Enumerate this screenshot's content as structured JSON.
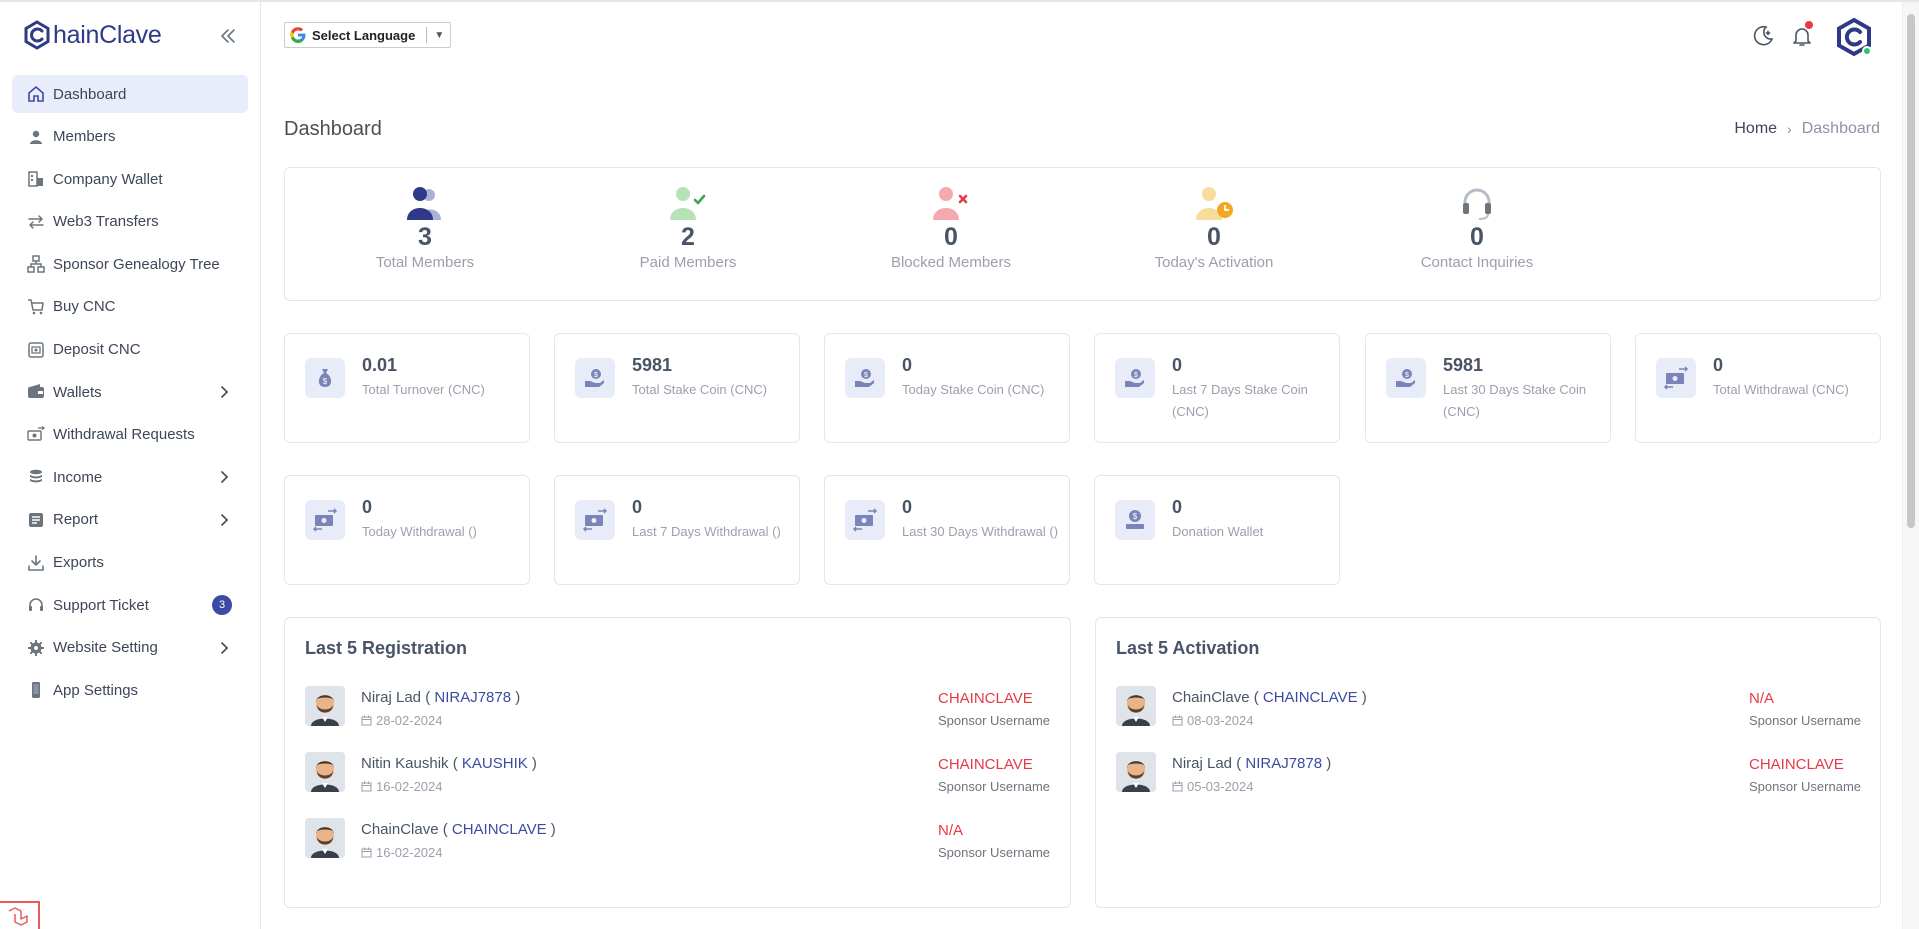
{
  "brand": {
    "name": "hainClave"
  },
  "sidebar": {
    "items": [
      {
        "label": "Dashboard",
        "icon": "home-icon",
        "active": true
      },
      {
        "label": "Members",
        "icon": "user-icon"
      },
      {
        "label": "Company Wallet",
        "icon": "building-icon"
      },
      {
        "label": "Web3 Transfers",
        "icon": "transfer-icon"
      },
      {
        "label": "Sponsor Genealogy Tree",
        "icon": "tree-icon"
      },
      {
        "label": "Buy CNC",
        "icon": "cart-icon"
      },
      {
        "label": "Deposit CNC",
        "icon": "deposit-icon"
      },
      {
        "label": "Wallets",
        "icon": "wallet-icon",
        "arrow": true
      },
      {
        "label": "Withdrawal Requests",
        "icon": "withdraw-icon"
      },
      {
        "label": "Income",
        "icon": "coins-icon",
        "arrow": true
      },
      {
        "label": "Report",
        "icon": "report-icon",
        "arrow": true
      },
      {
        "label": "Exports",
        "icon": "download-icon"
      },
      {
        "label": "Support Ticket",
        "icon": "headset-icon",
        "badge": "3"
      },
      {
        "label": "Website Setting",
        "icon": "gear-icon",
        "arrow": true
      },
      {
        "label": "App Settings",
        "icon": "phone-icon"
      }
    ]
  },
  "topbar": {
    "language_label": "Select Language",
    "language_caret": "▼"
  },
  "page": {
    "title": "Dashboard",
    "breadcrumb_home": "Home",
    "breadcrumb_sep": "›",
    "breadcrumb_current": "Dashboard"
  },
  "member_stats": [
    {
      "value": "3",
      "label": "Total Members"
    },
    {
      "value": "2",
      "label": "Paid Members"
    },
    {
      "value": "0",
      "label": "Blocked Members"
    },
    {
      "value": "0",
      "label": "Today's Activation"
    },
    {
      "value": "0",
      "label": "Contact Inquiries"
    }
  ],
  "value_cards": [
    {
      "value": "0.01",
      "label": "Total Turnover (CNC)"
    },
    {
      "value": "5981",
      "label": "Total Stake Coin (CNC)"
    },
    {
      "value": "0",
      "label": "Today Stake Coin (CNC)"
    },
    {
      "value": "0",
      "label": "Last 7 Days Stake Coin (CNC)"
    },
    {
      "value": "5981",
      "label": "Last 30 Days Stake Coin (CNC)"
    },
    {
      "value": "0",
      "label": "Total Withdrawal (CNC)"
    },
    {
      "value": "0",
      "label": "Today Withdrawal ()"
    },
    {
      "value": "0",
      "label": "Last 7 Days Withdrawal ()"
    },
    {
      "value": "0",
      "label": "Last 30 Days Withdrawal ()"
    },
    {
      "value": "0",
      "label": "Donation Wallet"
    }
  ],
  "registrations": {
    "title": "Last 5 Registration",
    "rows": [
      {
        "name": "Niraj Lad",
        "username": "NIRAJ7878",
        "date": "28-02-2024",
        "sponsor": "CHAINCLAVE",
        "sponsor_label": "Sponsor Username"
      },
      {
        "name": "Nitin Kaushik",
        "username": "KAUSHIK",
        "date": "16-02-2024",
        "sponsor": "CHAINCLAVE",
        "sponsor_label": "Sponsor Username"
      },
      {
        "name": "ChainClave",
        "username": "CHAINCLAVE",
        "date": "16-02-2024",
        "sponsor": "N/A",
        "sponsor_label": "Sponsor Username"
      }
    ]
  },
  "activations": {
    "title": "Last 5 Activation",
    "rows": [
      {
        "name": "ChainClave",
        "username": "CHAINCLAVE",
        "date": "08-03-2024",
        "sponsor": "N/A",
        "sponsor_label": "Sponsor Username"
      },
      {
        "name": "Niraj Lad",
        "username": "NIRAJ7878",
        "date": "05-03-2024",
        "sponsor": "CHAINCLAVE",
        "sponsor_label": "Sponsor Username"
      }
    ]
  },
  "colors": {
    "primary": "#2e3a87",
    "accent": "#3b4ba3",
    "danger": "#e63946",
    "success": "#28c76f",
    "active_bg": "#e8ecfb"
  }
}
